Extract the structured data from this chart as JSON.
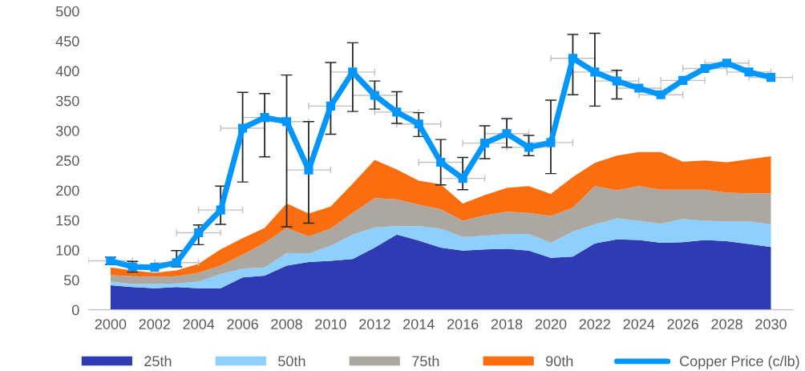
{
  "chart_data": {
    "type": "area",
    "stacked": true,
    "x": [
      2000,
      2001,
      2002,
      2003,
      2004,
      2005,
      2006,
      2007,
      2008,
      2009,
      2010,
      2011,
      2012,
      2013,
      2014,
      2015,
      2016,
      2017,
      2018,
      2019,
      2020,
      2021,
      2022,
      2023,
      2024,
      2025,
      2026,
      2027,
      2028,
      2029,
      2030
    ],
    "series": [
      {
        "name": "25th",
        "color": "#2e3bb2",
        "values": [
          41,
          38,
          36,
          38,
          36,
          36,
          54,
          57,
          74,
          80,
          82,
          85,
          104,
          126,
          116,
          104,
          99,
          101,
          102,
          99,
          87,
          89,
          111,
          118,
          117,
          112,
          113,
          117,
          115,
          110,
          105
        ]
      },
      {
        "name": "50th",
        "color": "#8dcffd",
        "values": [
          6,
          5,
          7,
          6,
          11,
          24,
          15,
          14,
          21,
          14,
          25,
          41,
          34,
          14,
          24,
          32,
          23,
          23,
          25,
          28,
          25,
          42,
          32,
          35,
          32,
          32,
          39,
          32,
          33,
          38,
          38
        ]
      },
      {
        "name": "75th",
        "color": "#aca7a0",
        "values": [
          11,
          13,
          12,
          12,
          15,
          14,
          23,
          41,
          42,
          29,
          29,
          36,
          49,
          45,
          36,
          32,
          27,
          34,
          37,
          35,
          45,
          40,
          64,
          47,
          58,
          57,
          49,
          52,
          48,
          47,
          52
        ]
      },
      {
        "name": "90th",
        "color": "#fb6e10",
        "values": [
          13,
          10,
          7,
          10,
          15,
          27,
          28,
          25,
          41,
          38,
          37,
          49,
          64,
          50,
          40,
          42,
          29,
          34,
          40,
          45,
          37,
          51,
          39,
          58,
          57,
          63,
          47,
          49,
          51,
          57,
          62
        ]
      },
      {
        "name": "Copper Price (c/lb)",
        "type": "line",
        "color": "#0096ff",
        "marker": "square",
        "line_style": "solid",
        "values": [
          82,
          72,
          71,
          79,
          129,
          167,
          304,
          322,
          315,
          234,
          341,
          398,
          359,
          331,
          311,
          247,
          220,
          279,
          295,
          272,
          280,
          421,
          398,
          383,
          371,
          360,
          384,
          404,
          413,
          398,
          389
        ],
        "errors": [
          [
            76,
            88
          ],
          [
            63,
            81
          ],
          null,
          [
            72,
            99
          ],
          [
            109,
            142
          ],
          [
            143,
            207
          ],
          [
            214,
            364
          ],
          [
            256,
            362
          ],
          [
            139,
            393
          ],
          [
            145,
            315
          ],
          [
            294,
            414
          ],
          [
            332,
            447
          ],
          [
            336,
            383
          ],
          [
            312,
            365
          ],
          [
            290,
            330
          ],
          [
            209,
            285
          ],
          [
            201,
            255
          ],
          [
            253,
            308
          ],
          [
            272,
            320
          ],
          [
            258,
            292
          ],
          [
            228,
            351
          ],
          [
            360,
            461
          ],
          [
            341,
            463
          ],
          [
            353,
            401
          ],
          null,
          null,
          null,
          null,
          null,
          null,
          null
        ],
        "xerrors": [
          1,
          null,
          null,
          1,
          1,
          1,
          1,
          1,
          1,
          1,
          1,
          1,
          1,
          1,
          1,
          1,
          1,
          1,
          1,
          1,
          1,
          1,
          1,
          1,
          1,
          1,
          1,
          1,
          1,
          1,
          1
        ]
      }
    ],
    "xlim": [
      1999,
      2031
    ],
    "xticks": [
      2000,
      2002,
      2004,
      2006,
      2008,
      2010,
      2012,
      2014,
      2016,
      2018,
      2020,
      2022,
      2024,
      2026,
      2028,
      2030
    ],
    "ylim": [
      0,
      500
    ],
    "yticks": [
      0,
      50,
      100,
      150,
      200,
      250,
      300,
      350,
      400,
      450,
      500
    ],
    "grid": false,
    "legend": "bottom"
  }
}
